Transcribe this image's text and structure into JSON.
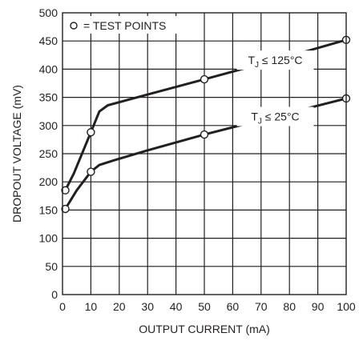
{
  "chart_data": {
    "type": "line",
    "title": "",
    "xlabel": "OUTPUT CURRENT (mA)",
    "ylabel": "DROPOUT VOLTAGE (mV)",
    "xlim": [
      0,
      100
    ],
    "ylim": [
      0,
      500
    ],
    "x_ticks": [
      0,
      10,
      20,
      30,
      40,
      50,
      60,
      70,
      80,
      90,
      100
    ],
    "y_ticks": [
      0,
      50,
      100,
      150,
      200,
      250,
      300,
      350,
      400,
      450,
      500
    ],
    "grid": true,
    "legend_note": "= TEST POINTS",
    "series": [
      {
        "name": "T_J ≤ 125°C",
        "label_main": "T",
        "label_sub": "J",
        "label_rest": " ≤ 125°C",
        "points": [
          [
            1,
            185
          ],
          [
            4,
            215
          ],
          [
            10,
            288
          ],
          [
            13,
            325
          ],
          [
            16,
            336
          ],
          [
            30,
            355
          ],
          [
            50,
            382
          ],
          [
            75,
            416
          ],
          [
            100,
            452
          ]
        ],
        "test_points": [
          [
            1,
            185
          ],
          [
            10,
            288
          ],
          [
            50,
            382
          ],
          [
            100,
            452
          ]
        ]
      },
      {
        "name": "T_J ≤ 25°C",
        "label_main": "T",
        "label_sub": "J",
        "label_rest": " ≤ 25°C",
        "points": [
          [
            1,
            152
          ],
          [
            5,
            185
          ],
          [
            10,
            218
          ],
          [
            13,
            230
          ],
          [
            18,
            238
          ],
          [
            30,
            256
          ],
          [
            50,
            284
          ],
          [
            75,
            316
          ],
          [
            100,
            348
          ]
        ],
        "test_points": [
          [
            1,
            152
          ],
          [
            10,
            218
          ],
          [
            50,
            284
          ],
          [
            100,
            348
          ]
        ]
      }
    ]
  }
}
